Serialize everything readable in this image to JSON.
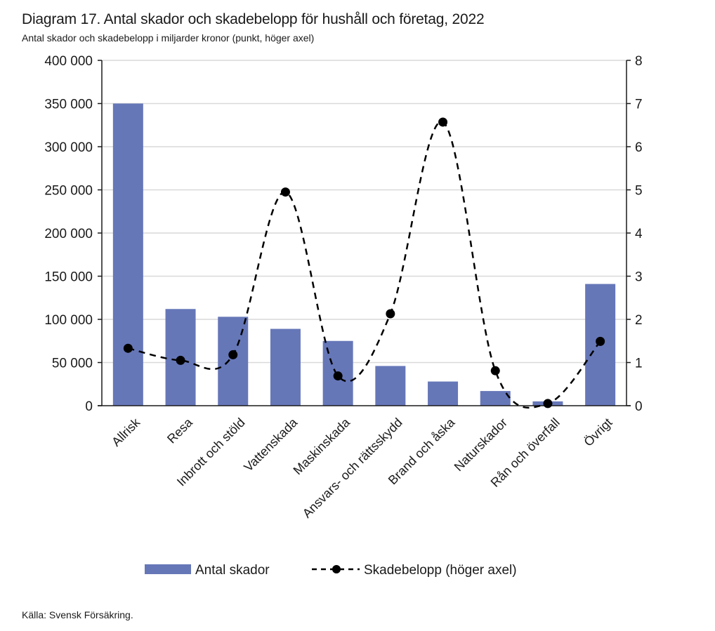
{
  "header": {
    "title": "Diagram 17. Antal skador och skadebelopp för hushåll och företag, 2022",
    "subtitle": "Antal skador och skadebelopp i miljarder kronor (punkt, höger axel)"
  },
  "footer": {
    "source": "Källa: Svensk Försäkring."
  },
  "chart_data": {
    "type": "bar",
    "title": "Diagram 17. Antal skador och skadebelopp för hushåll och företag, 2022",
    "subtitle": "Antal skador och skadebelopp i miljarder kronor (punkt, höger axel)",
    "categories": [
      "Allrisk",
      "Resa",
      "Inbrott och stöld",
      "Vattenskada",
      "Maskinskada",
      "Ansvars- och rättsskydd",
      "Brand och åska",
      "Naturskador",
      "Rån och överfall",
      "Övrigt"
    ],
    "series": [
      {
        "name": "Antal skador",
        "type": "bar",
        "axis": "left",
        "color": "#6677b8",
        "values": [
          350000,
          112000,
          103000,
          89000,
          75000,
          46000,
          28000,
          17000,
          5000,
          141000
        ]
      },
      {
        "name": "Skadebelopp (höger axel)",
        "type": "line",
        "style": "dashed-smooth-with-markers",
        "axis": "right",
        "color": "#000000",
        "values": [
          1.33,
          1.05,
          1.18,
          4.95,
          0.69,
          2.13,
          6.57,
          0.81,
          0.05,
          1.49
        ]
      }
    ],
    "left_axis": {
      "ylim": [
        0,
        400000
      ],
      "ticks": [
        0,
        50000,
        100000,
        150000,
        200000,
        250000,
        300000,
        350000,
        400000
      ],
      "tick_labels": [
        "0",
        "50 000",
        "100 000",
        "150 000",
        "200 000",
        "250 000",
        "300 000",
        "350 000",
        "400 000"
      ]
    },
    "right_axis": {
      "ylim": [
        0,
        8
      ],
      "ticks": [
        0,
        1,
        2,
        3,
        4,
        5,
        6,
        7,
        8
      ],
      "tick_labels": [
        "0",
        "1",
        "2",
        "3",
        "4",
        "5",
        "6",
        "7",
        "8"
      ]
    },
    "xlabel": "",
    "ylabel": "",
    "grid": true,
    "legend": {
      "placement": "bottom",
      "entries": [
        "Antal skador",
        "Skadebelopp (höger axel)"
      ]
    },
    "colors": {
      "bar": "#6677b8",
      "line": "#000000",
      "grid": "#d9d9d9",
      "axis": "#1a1a1a"
    }
  }
}
